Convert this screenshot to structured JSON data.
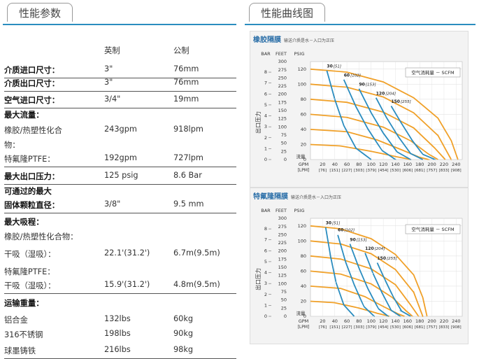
{
  "left_tab": {
    "title": "性能参数"
  },
  "right_tab": {
    "title": "性能曲线图"
  },
  "specs": {
    "headers": [
      "英制",
      "公制"
    ],
    "rows": [
      {
        "label": "介质进口尺寸：",
        "imperial": "3\"",
        "metric": "76mm",
        "bold": true,
        "line": true
      },
      {
        "label": "介质出口尺寸：",
        "imperial": "3\"",
        "metric": "76mm",
        "bold": true,
        "line": true
      },
      {
        "label": "空气进口尺寸：",
        "imperial": "3/4\"",
        "metric": "19mm",
        "bold": true,
        "line": true
      },
      {
        "label": "最大流量：",
        "imperial": "",
        "metric": "",
        "bold": true,
        "line": false
      },
      {
        "label": "橡胶/热塑性化合",
        "imperial": "243gpm",
        "metric": "918lpm",
        "bold": false,
        "line": false
      },
      {
        "label": "物：",
        "imperial": "",
        "metric": "",
        "bold": false,
        "line": false
      },
      {
        "label": "特氟隆PTFE：",
        "imperial": "192gpm",
        "metric": "727lpm",
        "bold": false,
        "line": true
      },
      {
        "label": "最大出口压力：",
        "imperial": "125 psig",
        "metric": "8.6 Bar",
        "bold": true,
        "line": true
      },
      {
        "label": "可通过的最大",
        "imperial": "",
        "metric": "",
        "bold": true,
        "line": false
      },
      {
        "label": "固体颗粒直径：",
        "imperial": "3/8\"",
        "metric": "9.5 mm",
        "bold": true,
        "line": true
      },
      {
        "label": "最大吸程：",
        "imperial": "",
        "metric": "",
        "bold": true,
        "line": false
      },
      {
        "label": "橡胶/热塑性化合物：",
        "imperial": "",
        "metric": "",
        "bold": false,
        "line": false
      },
      {
        "label": "干吸（湿吸）：",
        "imperial": "22.1'(31.2')",
        "metric": "6.7m(9.5m)",
        "bold": false,
        "line": false
      },
      {
        "label": "特氟隆PTFE：",
        "imperial": "",
        "metric": "",
        "bold": false,
        "line": false
      },
      {
        "label": "干吸（湿吸）：",
        "imperial": "15.9'(31.2')",
        "metric": "4.8m(9.5m)",
        "bold": false,
        "line": true
      },
      {
        "label": "运输重量：",
        "imperial": "",
        "metric": "",
        "bold": true,
        "line": false
      },
      {
        "label": "铝合金",
        "imperial": "132lbs",
        "metric": "60kg",
        "bold": false,
        "line": false
      },
      {
        "label": "316不锈钢",
        "imperial": "198lbs",
        "metric": "90kg",
        "bold": false,
        "line": false
      },
      {
        "label": "球墨铸铁",
        "imperial": "216lbs",
        "metric": "98kg",
        "bold": false,
        "line": true
      }
    ]
  },
  "chart_data": [
    {
      "type": "line",
      "title": "橡胶隔膜",
      "subtitle": "输送介质是水－入口为正压",
      "legend": "空气消耗量 － SCFM",
      "axis_headers": {
        "bar": "BAR",
        "feet": "FEET",
        "psig": "PSIG"
      },
      "ylabel": "出口压力",
      "xlabel": "流量",
      "bar_ticks": [
        "0",
        "1",
        "2",
        "3",
        "4",
        "5",
        "6",
        "7",
        "8"
      ],
      "feet_ticks": [
        "0",
        "25",
        "50",
        "75",
        "100",
        "125",
        "150",
        "175",
        "200",
        "225",
        "250",
        "275",
        "300"
      ],
      "psig_ticks": [
        "0",
        "20",
        "40",
        "60",
        "80",
        "100",
        "120"
      ],
      "gpm_label": "GPM",
      "lpm_label": "[LPM]",
      "gpm_ticks": [
        "20",
        "40",
        "60",
        "80",
        "100",
        "120",
        "140",
        "160",
        "180",
        "200",
        "220",
        "240"
      ],
      "lpm_ticks": [
        "[76]",
        "[151]",
        "[227]",
        "[303]",
        "[379]",
        "[454]",
        "[530]",
        "[606]",
        "[681]",
        "[757]",
        "[833]",
        "[908]"
      ],
      "xlim": [
        0,
        250
      ],
      "ylim": [
        0,
        130
      ],
      "air_labels": [
        {
          "text": "30",
          "metric": "[51]",
          "x": 27,
          "y": 122
        },
        {
          "text": "60",
          "metric": "[102]",
          "x": 55,
          "y": 110
        },
        {
          "text": "90",
          "metric": "[153]",
          "x": 80,
          "y": 98
        },
        {
          "text": "120",
          "metric": "[204]",
          "x": 108,
          "y": 86
        },
        {
          "text": "150",
          "metric": "[255]",
          "x": 133,
          "y": 75
        }
      ],
      "series": [
        {
          "name": "pressure",
          "color": "#f0a028",
          "x": [
            0,
            60,
            120,
            170,
            210,
            232,
            243
          ],
          "y": [
            120,
            116,
            103,
            82,
            55,
            25,
            0
          ]
        },
        {
          "name": "pressure",
          "color": "#f0a028",
          "x": [
            0,
            60,
            120,
            170,
            210,
            232
          ],
          "y": [
            100,
            96,
            83,
            62,
            32,
            0
          ]
        },
        {
          "name": "pressure",
          "color": "#f0a028",
          "x": [
            0,
            60,
            120,
            170,
            205,
            222
          ],
          "y": [
            80,
            76,
            63,
            42,
            15,
            0
          ]
        },
        {
          "name": "pressure",
          "color": "#f0a028",
          "x": [
            0,
            60,
            120,
            165,
            195,
            210
          ],
          "y": [
            60,
            56,
            43,
            25,
            7,
            0
          ]
        },
        {
          "name": "pressure",
          "color": "#f0a028",
          "x": [
            0,
            60,
            110,
            150,
            180,
            195
          ],
          "y": [
            40,
            37,
            26,
            13,
            3,
            0
          ]
        },
        {
          "name": "pressure",
          "color": "#f0a028",
          "x": [
            0,
            50,
            100,
            140,
            165
          ],
          "y": [
            20,
            18,
            11,
            4,
            0
          ]
        },
        {
          "name": "30 SCFM",
          "color": "#2a8cbf",
          "x": [
            27,
            40,
            55,
            75,
            100
          ],
          "y": [
            118,
            80,
            45,
            15,
            0
          ]
        },
        {
          "name": "60 SCFM",
          "color": "#2a8cbf",
          "x": [
            55,
            75,
            95,
            118,
            140
          ],
          "y": [
            106,
            70,
            40,
            12,
            0
          ]
        },
        {
          "name": "90 SCFM",
          "color": "#2a8cbf",
          "x": [
            80,
            100,
            120,
            143,
            165
          ],
          "y": [
            94,
            62,
            35,
            10,
            0
          ]
        },
        {
          "name": "120 SCFM",
          "color": "#2a8cbf",
          "x": [
            108,
            125,
            145,
            165,
            185
          ],
          "y": [
            82,
            56,
            30,
            8,
            0
          ]
        },
        {
          "name": "150 SCFM",
          "color": "#2a8cbf",
          "x": [
            133,
            150,
            168,
            185,
            205
          ],
          "y": [
            71,
            48,
            25,
            7,
            0
          ]
        }
      ]
    },
    {
      "type": "line",
      "title": "特氟隆隔膜",
      "subtitle": "输送介质是水－入口为正压",
      "legend": "空气消耗量 － SCFM",
      "axis_headers": {
        "bar": "BAR",
        "feet": "FEET",
        "psig": "PSIG"
      },
      "ylabel": "出口压力",
      "xlabel": "流量",
      "bar_ticks": [
        "0",
        "1",
        "2",
        "3",
        "4",
        "5",
        "6",
        "7",
        "8"
      ],
      "feet_ticks": [
        "0",
        "25",
        "50",
        "75",
        "100",
        "125",
        "150",
        "175",
        "200",
        "225",
        "250",
        "275",
        "300"
      ],
      "psig_ticks": [
        "0",
        "20",
        "40",
        "60",
        "80",
        "100",
        "120"
      ],
      "gpm_label": "GPM",
      "lpm_label": "[LPM]",
      "gpm_ticks": [
        "20",
        "40",
        "60",
        "80",
        "100",
        "120",
        "140",
        "160",
        "180",
        "200",
        "220",
        "240"
      ],
      "lpm_ticks": [
        "[76]",
        "[151]",
        "[227]",
        "[303]",
        "[379]",
        "[454]",
        "[530]",
        "[606]",
        "[681]",
        "[757]",
        "[833]",
        "[908]"
      ],
      "xlim": [
        0,
        250
      ],
      "ylim": [
        0,
        130
      ],
      "air_labels": [
        {
          "text": "30",
          "metric": "[51]",
          "x": 25,
          "y": 122
        },
        {
          "text": "60",
          "metric": "[102]",
          "x": 45,
          "y": 113
        },
        {
          "text": "90",
          "metric": "[153]",
          "x": 65,
          "y": 100
        },
        {
          "text": "120",
          "metric": "[204]",
          "x": 90,
          "y": 88
        },
        {
          "text": "150",
          "metric": "[255]",
          "x": 110,
          "y": 75
        }
      ],
      "series": [
        {
          "name": "pressure",
          "color": "#f0a028",
          "x": [
            0,
            50,
            100,
            140,
            170,
            185,
            192
          ],
          "y": [
            120,
            116,
            103,
            82,
            55,
            25,
            0
          ]
        },
        {
          "name": "pressure",
          "color": "#f0a028",
          "x": [
            0,
            50,
            100,
            140,
            170,
            185
          ],
          "y": [
            100,
            96,
            83,
            62,
            32,
            0
          ]
        },
        {
          "name": "pressure",
          "color": "#f0a028",
          "x": [
            0,
            50,
            100,
            140,
            165,
            178
          ],
          "y": [
            80,
            76,
            63,
            42,
            15,
            0
          ]
        },
        {
          "name": "pressure",
          "color": "#f0a028",
          "x": [
            0,
            50,
            100,
            135,
            158,
            168
          ],
          "y": [
            60,
            56,
            43,
            25,
            7,
            0
          ]
        },
        {
          "name": "pressure",
          "color": "#f0a028",
          "x": [
            0,
            50,
            90,
            120,
            145,
            155
          ],
          "y": [
            40,
            37,
            26,
            13,
            3,
            0
          ]
        },
        {
          "name": "pressure",
          "color": "#f0a028",
          "x": [
            0,
            40,
            80,
            110,
            130
          ],
          "y": [
            20,
            18,
            11,
            4,
            0
          ]
        },
        {
          "name": "30 SCFM",
          "color": "#2a8cbf",
          "x": [
            25,
            33,
            42,
            55,
            72
          ],
          "y": [
            118,
            80,
            45,
            15,
            0
          ]
        },
        {
          "name": "60 SCFM",
          "color": "#2a8cbf",
          "x": [
            45,
            58,
            72,
            88,
            105
          ],
          "y": [
            108,
            72,
            42,
            13,
            0
          ]
        },
        {
          "name": "90 SCFM",
          "color": "#2a8cbf",
          "x": [
            65,
            80,
            95,
            112,
            128
          ],
          "y": [
            96,
            64,
            36,
            10,
            0
          ]
        },
        {
          "name": "120 SCFM",
          "color": "#2a8cbf",
          "x": [
            90,
            103,
            118,
            133,
            148
          ],
          "y": [
            84,
            57,
            31,
            8,
            0
          ]
        },
        {
          "name": "150 SCFM",
          "color": "#2a8cbf",
          "x": [
            110,
            123,
            137,
            150,
            165
          ],
          "y": [
            71,
            48,
            25,
            7,
            0
          ]
        }
      ]
    }
  ]
}
